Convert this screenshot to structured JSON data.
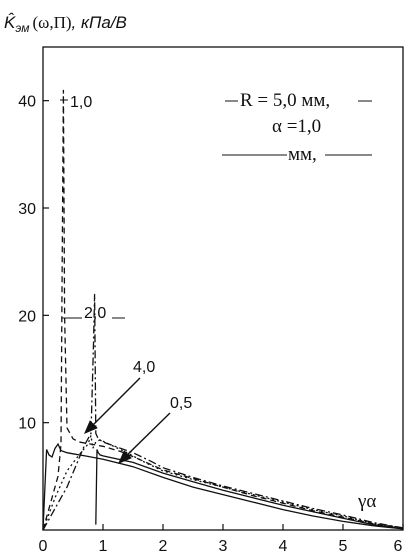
{
  "chart_data": {
    "type": "line",
    "title": "K̂эм (ω,Π) , кПа/В",
    "title_parts": {
      "symbol": "K̂",
      "subscript": "эм",
      "args": "(ω,Π)",
      "units": ", кПа/В"
    },
    "xlabel": "γα",
    "ylabel": "",
    "xlim": [
      0,
      6
    ],
    "ylim": [
      0,
      45
    ],
    "x_ticks": [
      "0",
      "1",
      "2",
      "3",
      "4",
      "5",
      "6"
    ],
    "y_ticks": [
      "10",
      "20",
      "30",
      "40"
    ],
    "grid": false,
    "annotation": {
      "line1": "R = 5,0 мм,",
      "line2": "α =1,0",
      "line3": "мм,"
    },
    "series": [
      {
        "name": "1,0",
        "style": "dashed",
        "x": [
          0,
          0.15,
          0.25,
          0.3,
          0.32,
          0.34,
          0.36,
          0.4,
          0.5,
          0.6,
          0.8,
          1.0,
          1.3,
          1.6,
          2.0,
          2.5,
          3.0,
          3.5,
          4.0,
          4.5,
          5.0,
          5.5,
          6.0
        ],
        "y": [
          0,
          3,
          5,
          8,
          25,
          41,
          20,
          9.5,
          8.5,
          8.2,
          8.0,
          7.8,
          7.3,
          6.6,
          5.6,
          4.8,
          4.0,
          3.2,
          2.5,
          1.8,
          1.2,
          0.6,
          0.2
        ]
      },
      {
        "name": "2,0",
        "style": "dash-dot",
        "x": [
          0,
          0.2,
          0.4,
          0.55,
          0.7,
          0.8,
          0.84,
          0.86,
          0.88,
          0.92,
          1.0,
          1.2,
          1.5,
          1.8,
          2.0,
          2.5,
          3.0,
          3.5,
          4.0,
          4.5,
          5.0,
          5.5,
          6.0
        ],
        "y": [
          0,
          2,
          4,
          6,
          8,
          9,
          17,
          22,
          9,
          8.5,
          8.2,
          7.8,
          7.2,
          6.4,
          5.8,
          4.9,
          4.1,
          3.4,
          2.7,
          2.0,
          1.4,
          0.7,
          0.2
        ]
      },
      {
        "name": "4,0",
        "style": "dotted",
        "x": [
          0,
          0.2,
          0.4,
          0.6,
          0.75,
          0.8,
          0.83,
          0.88,
          0.95,
          1.1,
          1.4,
          1.7,
          2.0,
          2.5,
          3.0,
          3.5,
          4.0,
          4.5,
          5.0,
          5.5,
          6.0
        ],
        "y": [
          0,
          3,
          5.5,
          7,
          8,
          8.8,
          7.6,
          8.2,
          8.4,
          8.0,
          7.2,
          6.3,
          5.5,
          4.7,
          4.0,
          3.3,
          2.6,
          1.9,
          1.3,
          0.6,
          0.2
        ]
      },
      {
        "name": "0,5",
        "style": "solid",
        "x": [
          0,
          0.06,
          0.1,
          0.15,
          0.2,
          0.25,
          0.3,
          0.4,
          0.5,
          0.7,
          1.0,
          1.5,
          2.0,
          2.5,
          3.0,
          3.5,
          4.0,
          4.5,
          5.0,
          5.5,
          6.0
        ],
        "y": [
          0,
          7.5,
          7.0,
          6.8,
          7.6,
          8.0,
          7.4,
          7.2,
          7.1,
          6.9,
          6.6,
          5.9,
          4.9,
          4.0,
          3.3,
          2.6,
          1.9,
          1.3,
          0.8,
          0.4,
          0.1
        ]
      },
      {
        "name": "",
        "style": "solid",
        "x": [
          0.88,
          0.9,
          0.92,
          0.95,
          1.0,
          1.5,
          2.0,
          2.5,
          3.0,
          3.5,
          4.0,
          4.5,
          5.0,
          5.5,
          6.0
        ],
        "y": [
          0.5,
          7.5,
          7.2,
          7.0,
          6.9,
          6.3,
          5.3,
          4.5,
          3.7,
          3.0,
          2.3,
          1.7,
          1.1,
          0.5,
          0.1
        ]
      }
    ],
    "labels": [
      {
        "text": "1,0"
      },
      {
        "text": "2,0"
      },
      {
        "text": "4,0"
      },
      {
        "text": "0,5"
      }
    ]
  }
}
